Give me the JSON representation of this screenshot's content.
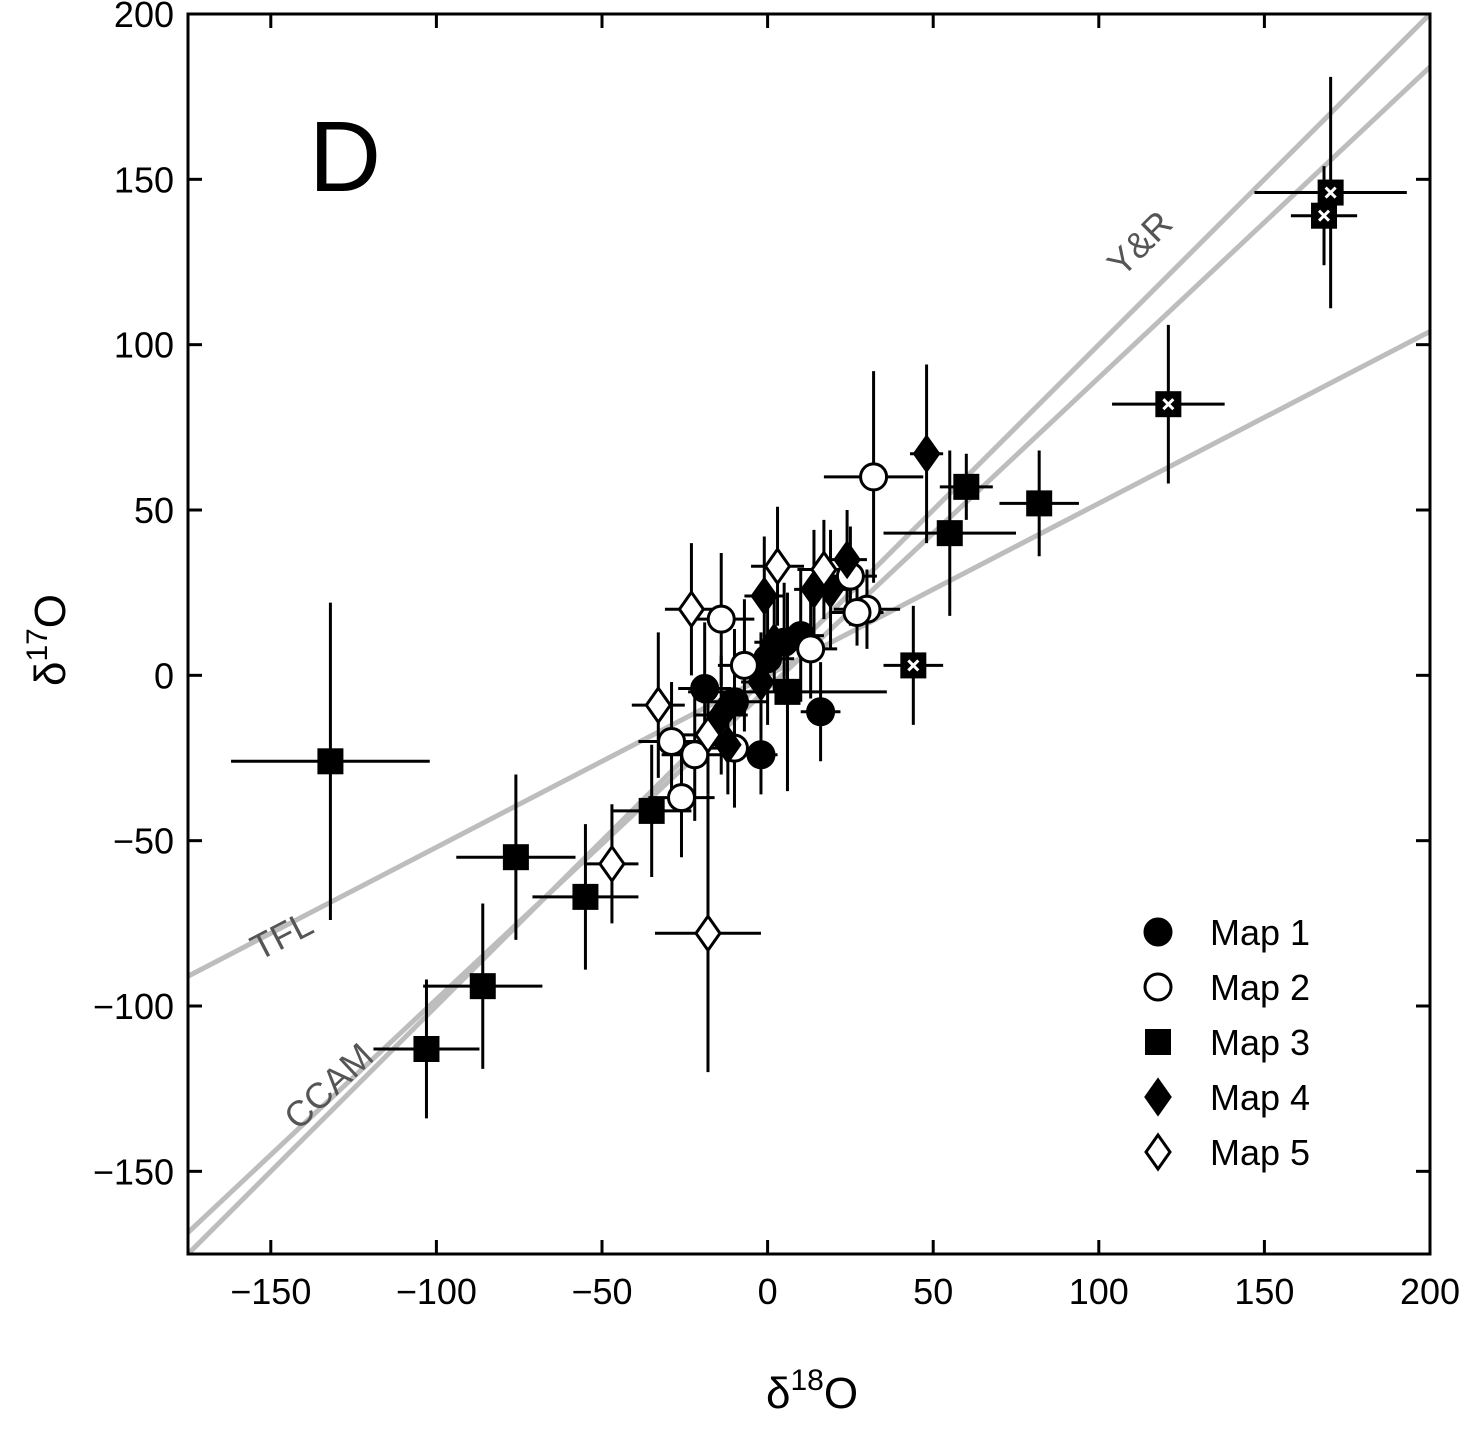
{
  "chart_data": {
    "type": "scatter",
    "panel_label": "D",
    "xlabel": {
      "base": "δ",
      "sup": "18",
      "tail": "O"
    },
    "ylabel": {
      "base": "δ",
      "sup": "17",
      "tail": "O"
    },
    "xlim": [
      -175,
      200
    ],
    "ylim": [
      -175,
      200
    ],
    "xticks": [
      -150,
      -100,
      -50,
      0,
      50,
      100,
      150,
      200
    ],
    "yticks": [
      -150,
      -100,
      -50,
      0,
      50,
      100,
      150,
      200
    ],
    "xtick_labels": [
      "−150",
      "−100",
      "−50",
      "0",
      "50",
      "100",
      "150",
      "200"
    ],
    "ytick_labels": [
      "−150",
      "−100",
      "−50",
      "0",
      "50",
      "100",
      "150",
      "200"
    ],
    "ref_lines": [
      {
        "name": "TFL",
        "label": "TFL",
        "slope": 0.52,
        "intercept": 0,
        "color": "#bdbdbd",
        "label_at": [
          -145,
          -82
        ]
      },
      {
        "name": "CCAM",
        "label": "CCAM",
        "slope": 0.94,
        "intercept": -4,
        "color": "#bdbdbd",
        "label_at": [
          -130,
          -127
        ]
      },
      {
        "name": "Y&R",
        "label": "Y&R",
        "slope": 1.0,
        "intercept": 0,
        "color": "#bdbdbd",
        "label_at": [
          115,
          128
        ]
      }
    ],
    "legend": {
      "position": "bottom-right",
      "entries": [
        {
          "label": "Map 1",
          "marker": "circle",
          "fill": "#000000"
        },
        {
          "label": "Map 2",
          "marker": "circle",
          "fill": "#ffffff"
        },
        {
          "label": "Map 3",
          "marker": "square",
          "fill": "#000000"
        },
        {
          "label": "Map 4",
          "marker": "diamond",
          "fill": "#000000"
        },
        {
          "label": "Map 5",
          "marker": "diamond",
          "fill": "#ffffff"
        }
      ]
    },
    "series": [
      {
        "name": "Map 1",
        "marker": "circle",
        "fill": "#000000",
        "points": [
          {
            "x": -19,
            "y": -4,
            "xerr": 8,
            "yerr": 20
          },
          {
            "x": -10,
            "y": -8,
            "xerr": 10,
            "yerr": 22
          },
          {
            "x": -2,
            "y": -24,
            "xerr": 5,
            "yerr": 12
          },
          {
            "x": 16,
            "y": -11,
            "xerr": 6,
            "yerr": 15
          },
          {
            "x": 0,
            "y": 5,
            "xerr": 8,
            "yerr": 20
          },
          {
            "x": 5,
            "y": 10,
            "xerr": 6,
            "yerr": 18
          },
          {
            "x": 10,
            "y": 12,
            "xerr": 7,
            "yerr": 20
          }
        ]
      },
      {
        "name": "Map 2",
        "marker": "circle",
        "fill": "#ffffff",
        "points": [
          {
            "x": 32,
            "y": 60,
            "xerr": 15,
            "yerr": 32
          },
          {
            "x": -14,
            "y": 17,
            "xerr": 10,
            "yerr": 20
          },
          {
            "x": -7,
            "y": 3,
            "xerr": 8,
            "yerr": 20
          },
          {
            "x": -29,
            "y": -20,
            "xerr": 10,
            "yerr": 18
          },
          {
            "x": -22,
            "y": -24,
            "xerr": 10,
            "yerr": 20
          },
          {
            "x": -10,
            "y": -22,
            "xerr": 8,
            "yerr": 18
          },
          {
            "x": -26,
            "y": -37,
            "xerr": 10,
            "yerr": 18
          },
          {
            "x": 25,
            "y": 30,
            "xerr": 8,
            "yerr": 15
          },
          {
            "x": 30,
            "y": 20,
            "xerr": 10,
            "yerr": 12
          },
          {
            "x": 27,
            "y": 19,
            "xerr": 8,
            "yerr": 10
          },
          {
            "x": 13,
            "y": 8,
            "xerr": 8,
            "yerr": 15
          }
        ]
      },
      {
        "name": "Map 3",
        "marker": "square",
        "fill": "#000000",
        "points": [
          {
            "x": -132,
            "y": -26,
            "xerr": 30,
            "yerr": 48
          },
          {
            "x": -76,
            "y": -55,
            "xerr": 18,
            "yerr": 25
          },
          {
            "x": -55,
            "y": -67,
            "xerr": 16,
            "yerr": 22
          },
          {
            "x": -86,
            "y": -94,
            "xerr": 18,
            "yerr": 25
          },
          {
            "x": -103,
            "y": -113,
            "xerr": 16,
            "yerr": 21
          },
          {
            "x": -35,
            "y": -41,
            "xerr": 12,
            "yerr": 20
          },
          {
            "x": 6,
            "y": -5,
            "xerr": 30,
            "yerr": 30
          },
          {
            "x": 55,
            "y": 43,
            "xerr": 20,
            "yerr": 25
          },
          {
            "x": 60,
            "y": 57,
            "xerr": 8,
            "yerr": 10
          },
          {
            "x": 82,
            "y": 52,
            "xerr": 12,
            "yerr": 16
          }
        ]
      },
      {
        "name": "Map 3 (x)",
        "marker": "square-x",
        "fill": "#000000",
        "points": [
          {
            "x": 170,
            "y": 146,
            "xerr": 23,
            "yerr": 35
          },
          {
            "x": 168,
            "y": 139,
            "xerr": 10,
            "yerr": 15
          },
          {
            "x": 121,
            "y": 82,
            "xerr": 17,
            "yerr": 24
          },
          {
            "x": 44,
            "y": 3,
            "xerr": 9,
            "yerr": 18
          }
        ]
      },
      {
        "name": "Map 4",
        "marker": "diamond",
        "fill": "#000000",
        "points": [
          {
            "x": 48,
            "y": 67,
            "xerr": 5,
            "yerr": 27
          },
          {
            "x": -1,
            "y": 24,
            "xerr": 6,
            "yerr": 18
          },
          {
            "x": 14,
            "y": 26,
            "xerr": 6,
            "yerr": 18
          },
          {
            "x": 24,
            "y": 35,
            "xerr": 6,
            "yerr": 15
          },
          {
            "x": 19,
            "y": 26,
            "xerr": 6,
            "yerr": 18
          },
          {
            "x": -14,
            "y": -12,
            "xerr": 8,
            "yerr": 18
          },
          {
            "x": -12,
            "y": -21,
            "xerr": 6,
            "yerr": 15
          },
          {
            "x": 2,
            "y": 10,
            "xerr": 6,
            "yerr": 15
          },
          {
            "x": -2,
            "y": -2,
            "xerr": 6,
            "yerr": 15
          }
        ]
      },
      {
        "name": "Map 5",
        "marker": "diamond",
        "fill": "#ffffff",
        "points": [
          {
            "x": 3,
            "y": 33,
            "xerr": 8,
            "yerr": 18
          },
          {
            "x": -23,
            "y": 20,
            "xerr": 8,
            "yerr": 20
          },
          {
            "x": -33,
            "y": -9,
            "xerr": 8,
            "yerr": 22
          },
          {
            "x": -18,
            "y": -18,
            "xerr": 8,
            "yerr": 18
          },
          {
            "x": 17,
            "y": 32,
            "xerr": 8,
            "yerr": 15
          },
          {
            "x": -47,
            "y": -57,
            "xerr": 8,
            "yerr": 18
          },
          {
            "x": -18,
            "y": -78,
            "xerr": 16,
            "yerr": 42
          }
        ]
      }
    ]
  }
}
